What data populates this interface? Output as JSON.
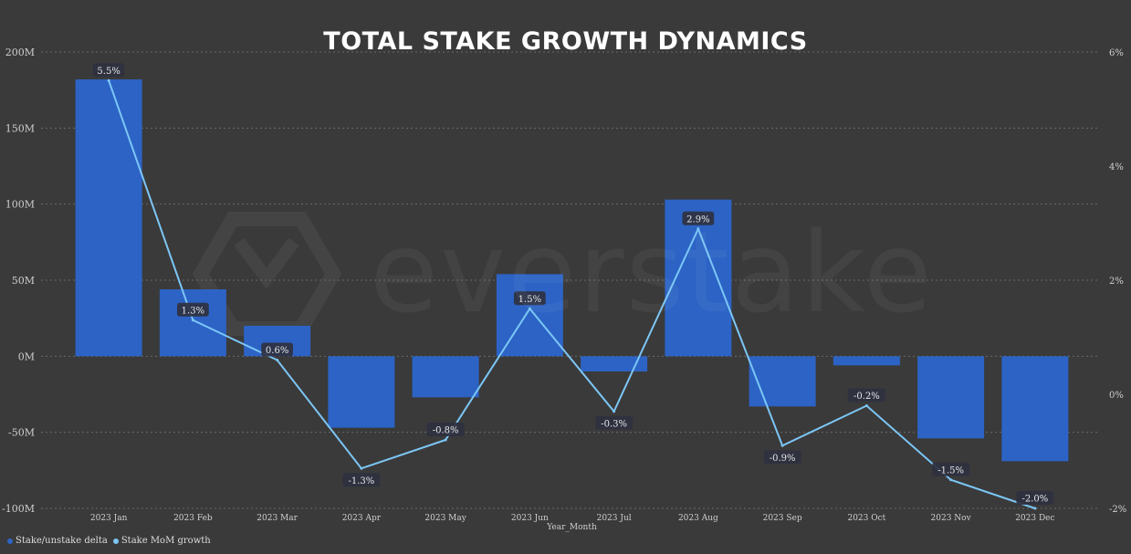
{
  "watermark": "everstake",
  "legend": {
    "items": [
      {
        "label": "Stake/unstake delta",
        "color": "#2c63c5"
      },
      {
        "label": "Stake MoM growth",
        "color": "#7cc6f5"
      }
    ]
  },
  "chart_data": {
    "type": "bar",
    "title": "TOTAL STAKE GROWTH DYNAMICS",
    "xlabel": "Year_Month",
    "categories": [
      "2023 Jan",
      "2023 Feb",
      "2023 Mar",
      "2023 Apr",
      "2023 May",
      "2023 Jun",
      "2023 Jul",
      "2023 Aug",
      "2023 Sep",
      "2023 Oct",
      "2023 Nov",
      "2023 Dec"
    ],
    "y_left": {
      "ticks": [
        200,
        150,
        100,
        50,
        0,
        -50,
        -100
      ],
      "tick_labels": [
        "200M",
        "150M",
        "100M",
        "50M",
        "0M",
        "-50M",
        "-100M"
      ],
      "range": [
        -100,
        200
      ],
      "unit": "M"
    },
    "y_right": {
      "ticks": [
        6,
        4,
        2,
        0,
        -2
      ],
      "tick_labels": [
        "6%",
        "4%",
        "2%",
        "0%",
        "-2%"
      ],
      "range": [
        -2,
        6
      ]
    },
    "grid": true,
    "legend_position": "bottom-left",
    "series": [
      {
        "name": "Stake/unstake delta",
        "type": "bar",
        "axis": "left",
        "color": "#2c63c5",
        "values": [
          182,
          44,
          20,
          -47,
          -27,
          54,
          -10,
          103,
          -33,
          -6,
          -54,
          -69
        ]
      },
      {
        "name": "Stake MoM growth",
        "type": "line",
        "axis": "right",
        "color": "#7cc6f5",
        "values": [
          5.5,
          1.3,
          0.6,
          -1.3,
          -0.8,
          1.5,
          -0.3,
          2.9,
          -0.9,
          -0.2,
          -1.5,
          -2.0
        ],
        "labels": [
          "5.5%",
          "1.3%",
          "0.6%",
          "-1.3%",
          "-0.8%",
          "1.5%",
          "-0.3%",
          "2.9%",
          "-0.9%",
          "-0.2%",
          "-1.5%",
          "-2.0%"
        ]
      }
    ]
  }
}
